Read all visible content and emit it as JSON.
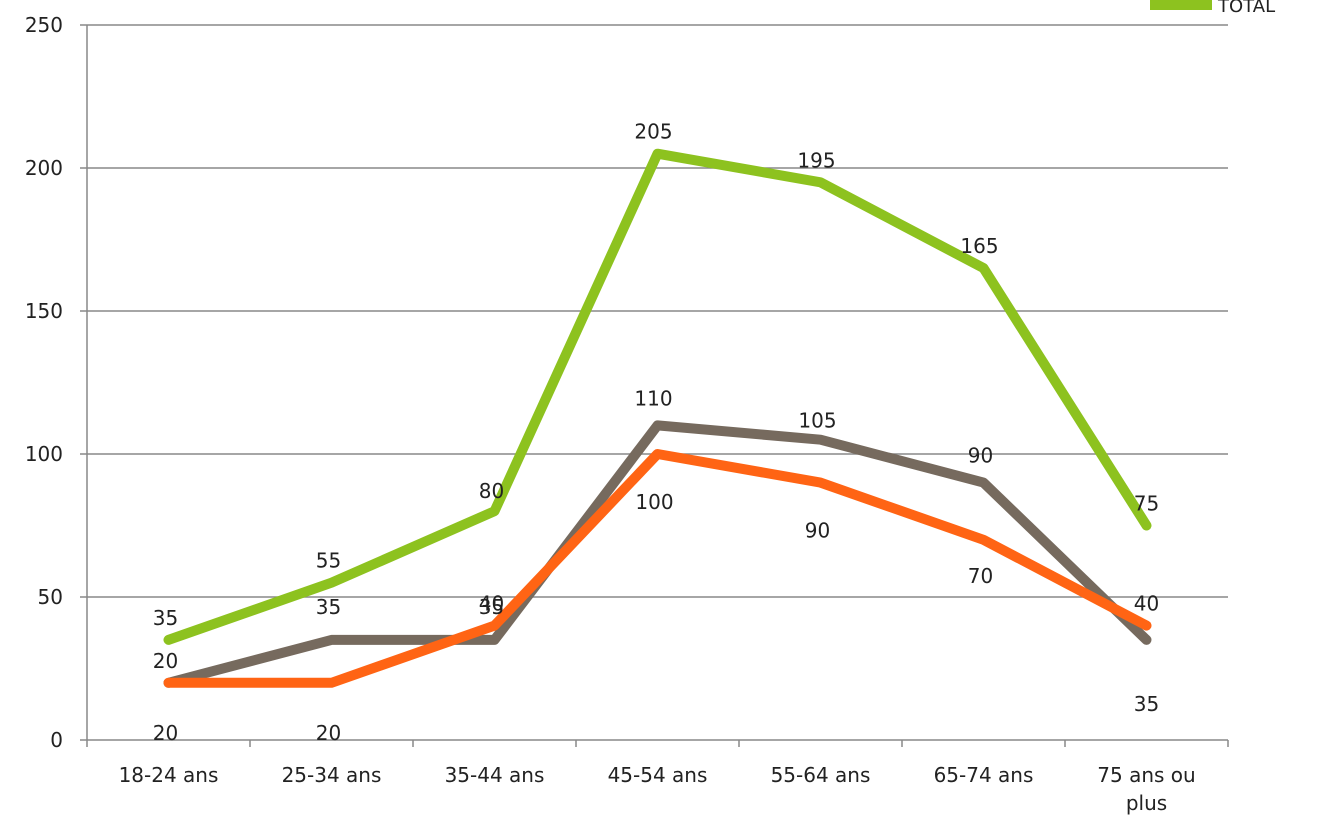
{
  "chart_data": {
    "type": "line",
    "categories": [
      "18-24 ans",
      "25-34 ans",
      "35-44 ans",
      "45-54 ans",
      "55-64 ans",
      "65-74 ans",
      "75 ans ou plus"
    ],
    "category_lines": [
      [
        "18-24 ans"
      ],
      [
        "25-34 ans"
      ],
      [
        "35-44 ans"
      ],
      [
        "45-54 ans"
      ],
      [
        "55-64 ans"
      ],
      [
        "65-74 ans"
      ],
      [
        "75 ans ou",
        "plus"
      ]
    ],
    "series": [
      {
        "name": "TOTAL",
        "color": "#8dc21f",
        "values": [
          35,
          55,
          80,
          205,
          195,
          165,
          75
        ]
      },
      {
        "color": "#766a5e",
        "values": [
          20,
          35,
          35,
          110,
          105,
          90,
          35
        ]
      },
      {
        "color": "#ff6414",
        "values": [
          20,
          20,
          40,
          100,
          90,
          70,
          40
        ]
      }
    ],
    "ylim": [
      0,
      250
    ],
    "yticks": [
      0,
      50,
      100,
      150,
      200,
      250
    ],
    "grid": true,
    "legend": "top-right",
    "gridline_color": "#888888",
    "axis_color": "#888888"
  }
}
